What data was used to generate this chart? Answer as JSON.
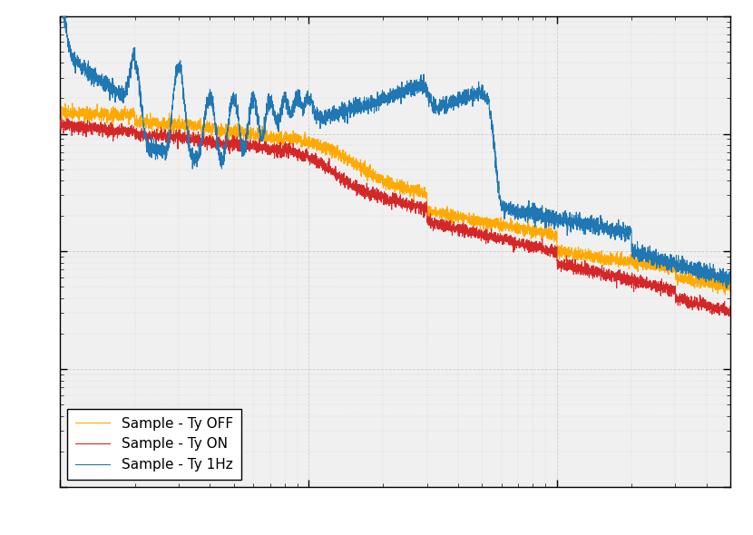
{
  "title": "",
  "xlabel": "",
  "ylabel": "",
  "line1_label": "Sample - Ty 1Hz",
  "line2_label": "Sample - Ty ON",
  "line3_label": "Sample - Ty OFF",
  "line1_color": "#1f77b4",
  "line2_color": "#d62728",
  "line3_color": "#ffaa00",
  "background_color": "#f0f0f0",
  "grid_color": "#cccccc",
  "xlim": [
    1,
    500
  ],
  "ylim": [
    0.001,
    10.0
  ],
  "legend_loc": "lower left",
  "figsize": [
    8.3,
    5.9
  ],
  "dpi": 100
}
